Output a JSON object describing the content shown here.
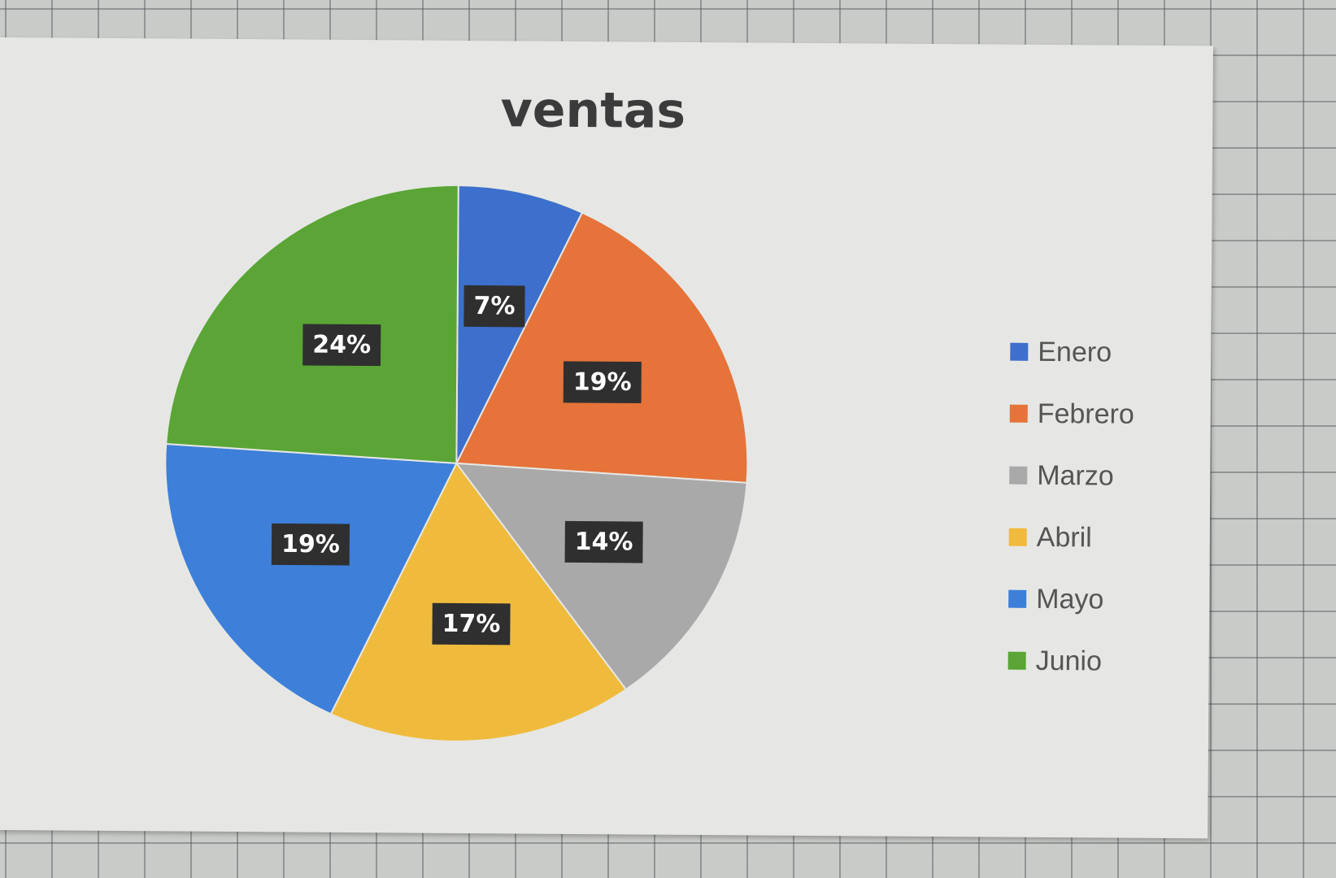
{
  "chart_data": {
    "type": "pie",
    "title": "ventas",
    "categories": [
      "Enero",
      "Febrero",
      "Marzo",
      "Abril",
      "Mayo",
      "Junio"
    ],
    "values": [
      7,
      19,
      14,
      17,
      19,
      24
    ],
    "labels": [
      "7%",
      "19%",
      "14%",
      "17%",
      "19%",
      "24%"
    ],
    "colors": [
      "#3d6fcc",
      "#e5733a",
      "#a9a9a9",
      "#f0bb3c",
      "#3d7fd9",
      "#5aa536"
    ],
    "legend_position": "right",
    "start_angle_deg": 0,
    "direction": "clockwise"
  }
}
